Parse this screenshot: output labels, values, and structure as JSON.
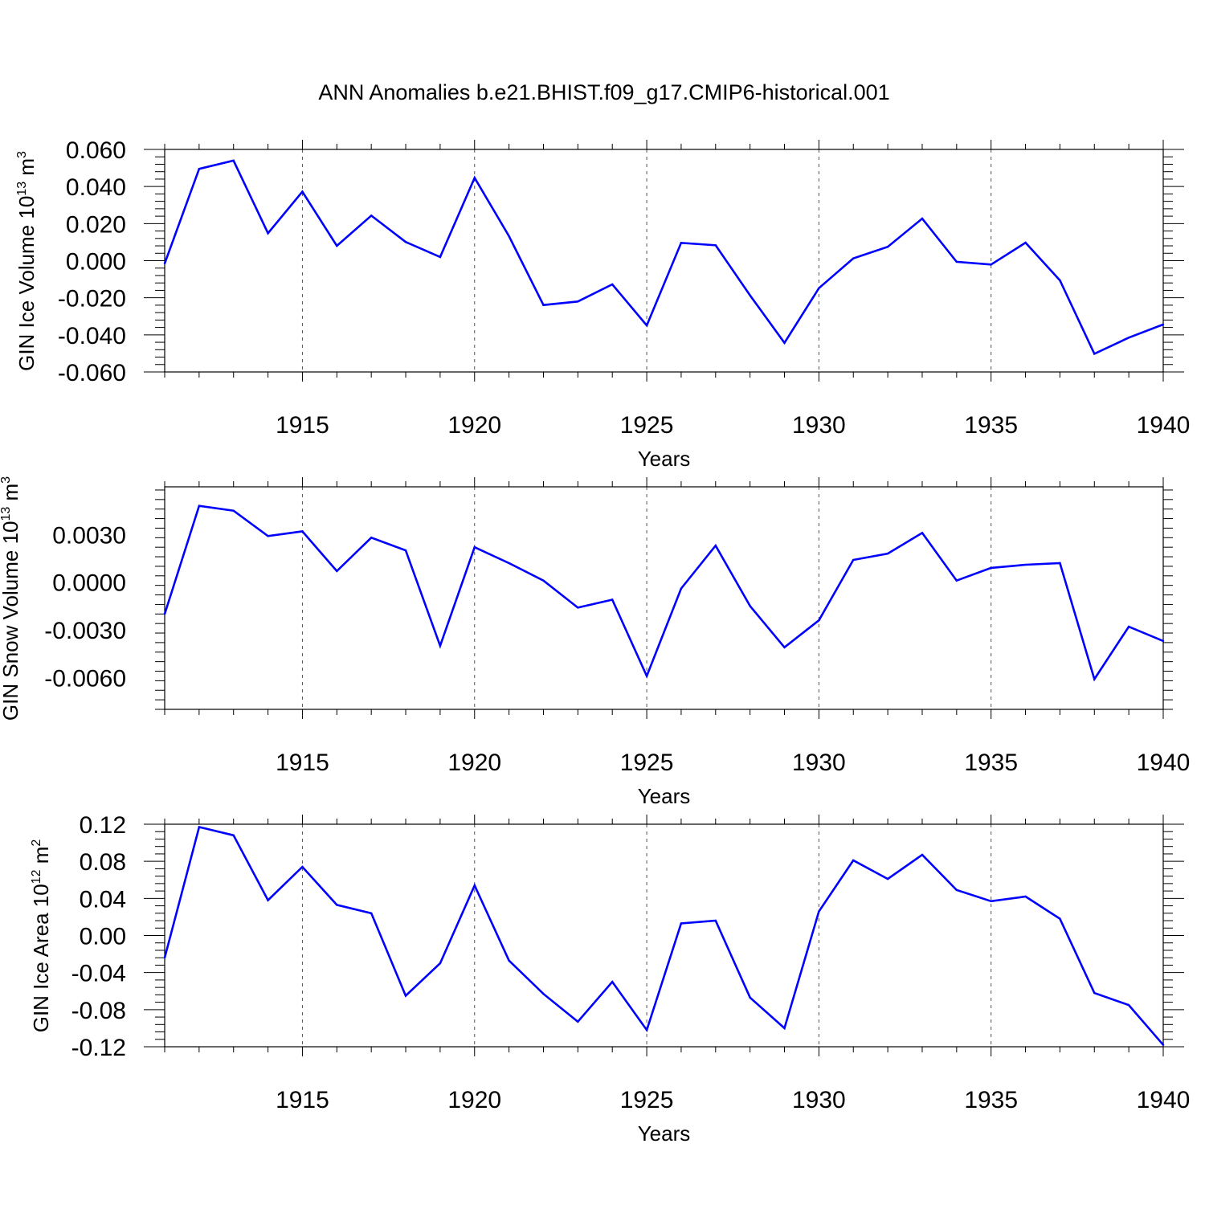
{
  "title": "ANN Anomalies b.e21.BHIST.f09_g17.CMIP6-historical.001",
  "colors": {
    "line": "#0000ff",
    "axis": "#000000",
    "grid": "#555555"
  },
  "chart_data": [
    {
      "type": "line",
      "xlabel": "Years",
      "ylabel": {
        "text": "GIN Ice Volume 10",
        "exp": "13",
        "unit": " m",
        "unit_exp": "3"
      },
      "xlim": [
        1911,
        1940
      ],
      "ylim": [
        -0.06,
        0.06
      ],
      "x_ticks": [
        1915,
        1920,
        1925,
        1930,
        1935,
        1940
      ],
      "x_tick_labels": [
        "1915",
        "1920",
        "1925",
        "1930",
        "1935",
        "1940"
      ],
      "y_ticks": [
        -0.06,
        -0.04,
        -0.02,
        0.0,
        0.02,
        0.04,
        0.06
      ],
      "y_tick_labels": [
        "-0.060",
        "-0.040",
        "-0.020",
        "0.000",
        "0.020",
        "0.040",
        "0.060"
      ],
      "grid": "vertical dashed at major x ticks",
      "x": [
        1911,
        1912,
        1913,
        1914,
        1915,
        1916,
        1917,
        1918,
        1919,
        1920,
        1921,
        1922,
        1923,
        1924,
        1925,
        1926,
        1927,
        1928,
        1929,
        1930,
        1931,
        1932,
        1933,
        1934,
        1935,
        1936,
        1937,
        1938,
        1939,
        1940
      ],
      "values": [
        -0.0015,
        0.0495,
        0.054,
        0.0148,
        0.0372,
        0.008,
        0.0243,
        0.0101,
        0.002,
        0.0447,
        0.0132,
        -0.0239,
        -0.022,
        -0.0128,
        -0.0349,
        0.0096,
        0.0083,
        -0.0187,
        -0.0443,
        -0.0148,
        0.0012,
        0.0075,
        0.0227,
        -0.0006,
        -0.0021,
        0.0097,
        -0.0106,
        -0.0502,
        -0.0415,
        -0.0344
      ]
    },
    {
      "type": "line",
      "xlabel": "Years",
      "ylabel": {
        "text": "GIN Snow Volume 10",
        "exp": "13",
        "unit": " m",
        "unit_exp": "3"
      },
      "xlim": [
        1911,
        1940
      ],
      "ylim": [
        -0.008,
        0.006
      ],
      "x_ticks": [
        1915,
        1920,
        1925,
        1930,
        1935,
        1940
      ],
      "x_tick_labels": [
        "1915",
        "1920",
        "1925",
        "1930",
        "1935",
        "1940"
      ],
      "y_ticks": [
        -0.006,
        -0.003,
        0.0,
        0.003
      ],
      "y_tick_labels": [
        "-0.0060",
        "-0.0030",
        "0.0000",
        "0.0030"
      ],
      "grid": "vertical dashed at major x ticks",
      "x": [
        1911,
        1912,
        1913,
        1914,
        1915,
        1916,
        1917,
        1918,
        1919,
        1920,
        1921,
        1922,
        1923,
        1924,
        1925,
        1926,
        1927,
        1928,
        1929,
        1930,
        1931,
        1932,
        1933,
        1934,
        1935,
        1936,
        1937,
        1938,
        1939,
        1940
      ],
      "values": [
        -0.002,
        0.0048,
        0.0045,
        0.0029,
        0.0032,
        0.0007,
        0.0028,
        0.002,
        -0.004,
        0.0022,
        0.0012,
        0.0001,
        -0.0016,
        -0.0011,
        -0.0059,
        -0.0004,
        0.0023,
        -0.0015,
        -0.0041,
        -0.0024,
        0.0014,
        0.0018,
        0.0031,
        0.0001,
        0.0009,
        0.0011,
        0.0012,
        -0.0061,
        -0.0028,
        -0.0037
      ]
    },
    {
      "type": "line",
      "xlabel": "Years",
      "ylabel": {
        "text": "GIN Ice Area 10",
        "exp": "12",
        "unit": " m",
        "unit_exp": "2"
      },
      "xlim": [
        1911,
        1940
      ],
      "ylim": [
        -0.12,
        0.12
      ],
      "x_ticks": [
        1915,
        1920,
        1925,
        1930,
        1935,
        1940
      ],
      "x_tick_labels": [
        "1915",
        "1920",
        "1925",
        "1930",
        "1935",
        "1940"
      ],
      "y_ticks": [
        -0.12,
        -0.08,
        -0.04,
        0.0,
        0.04,
        0.08,
        0.12
      ],
      "y_tick_labels": [
        "-0.12",
        "-0.08",
        "-0.04",
        "0.00",
        "0.04",
        "0.08",
        "0.12"
      ],
      "grid": "vertical dashed at major x ticks",
      "x": [
        1911,
        1912,
        1913,
        1914,
        1915,
        1916,
        1917,
        1918,
        1919,
        1920,
        1921,
        1922,
        1923,
        1924,
        1925,
        1926,
        1927,
        1928,
        1929,
        1930,
        1931,
        1932,
        1933,
        1934,
        1935,
        1936,
        1937,
        1938,
        1939,
        1940
      ],
      "values": [
        -0.024,
        0.117,
        0.108,
        0.038,
        0.074,
        0.033,
        0.024,
        -0.065,
        -0.03,
        0.054,
        -0.027,
        -0.063,
        -0.093,
        -0.05,
        -0.102,
        0.013,
        0.016,
        -0.067,
        -0.1,
        0.026,
        0.081,
        0.061,
        0.087,
        0.049,
        0.037,
        0.042,
        0.018,
        -0.062,
        -0.075,
        -0.118
      ]
    }
  ]
}
